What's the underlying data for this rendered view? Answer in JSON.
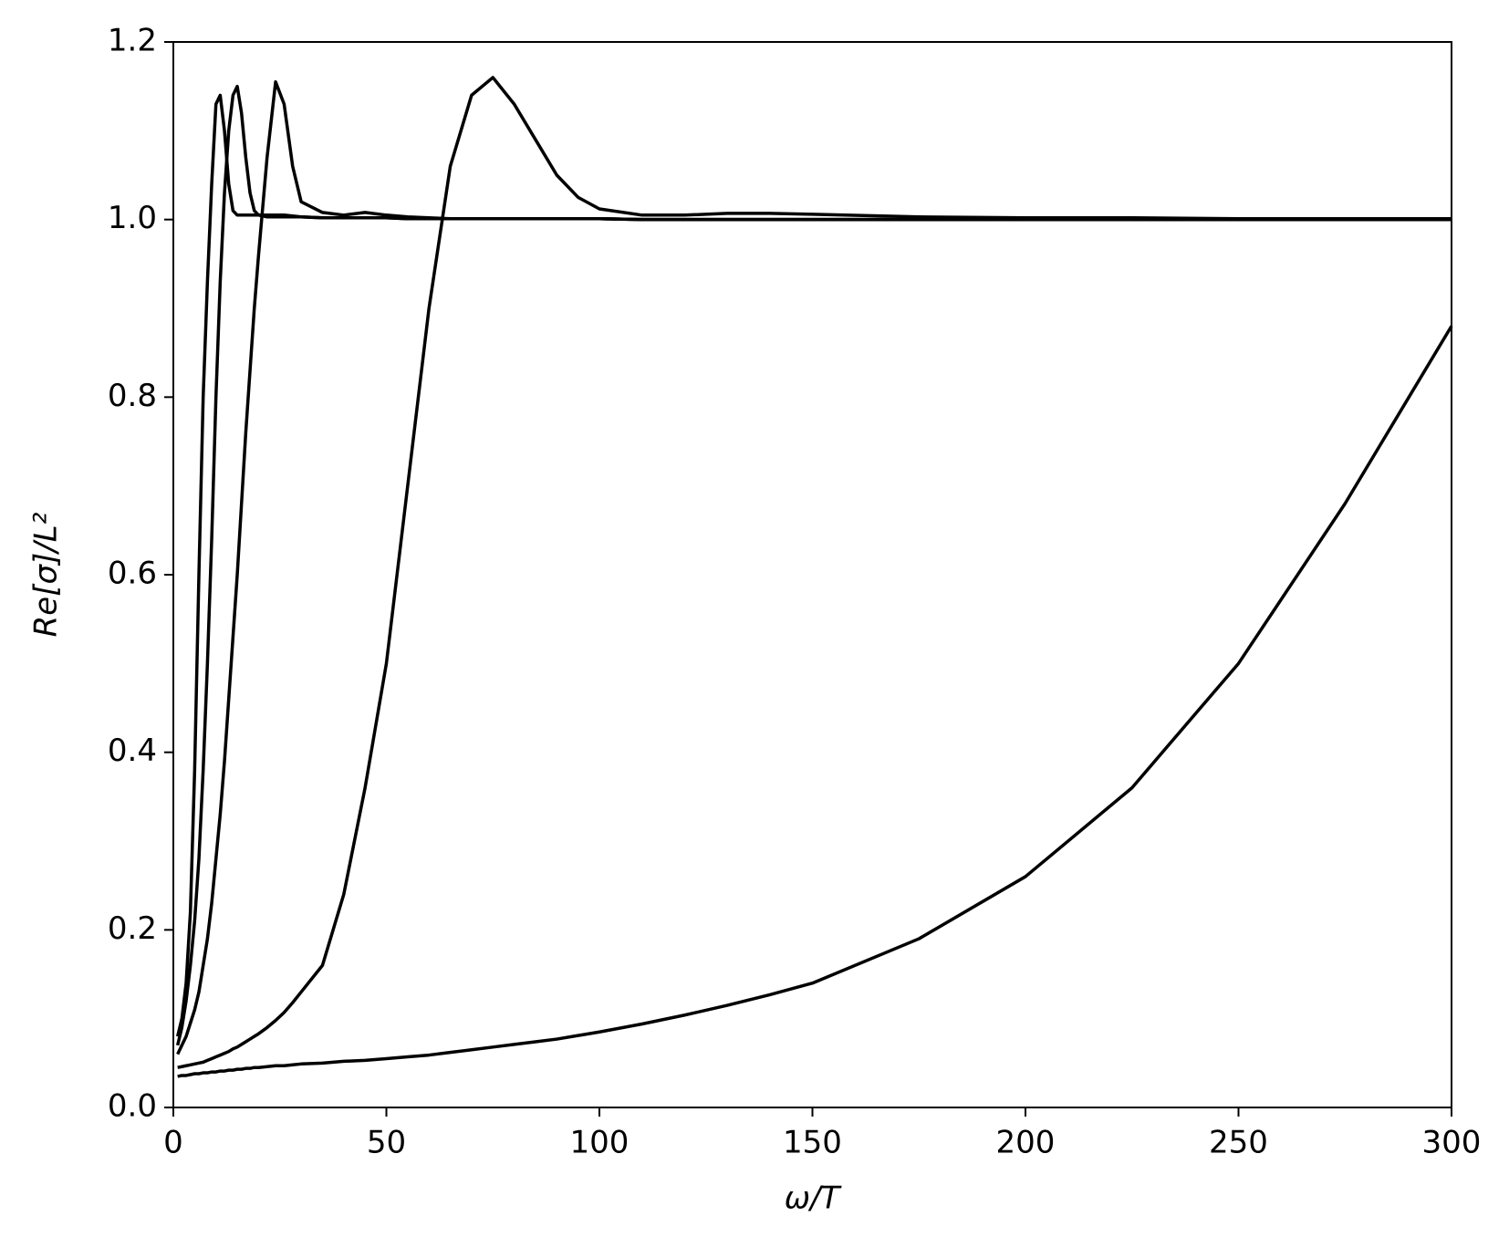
{
  "chart_data": {
    "type": "line",
    "x_label": "ω/T",
    "y_label": "Re[σ]/L²",
    "xlim": [
      0,
      300
    ],
    "ylim": [
      0,
      1.2
    ],
    "xticks": [
      0,
      50,
      100,
      150,
      200,
      250,
      300
    ],
    "yticks": [
      {
        "value": 0,
        "label": "0.0"
      },
      0.2,
      0.4,
      0.6,
      0.8,
      {
        "value": 1,
        "label": "1.0"
      },
      1.2
    ],
    "grid": false,
    "x": [
      1,
      2,
      3,
      4,
      5,
      6,
      7,
      8,
      9,
      10,
      11,
      12,
      13,
      14,
      15,
      16,
      17,
      18,
      19,
      20,
      22,
      24,
      26,
      28,
      30,
      35,
      40,
      45,
      50,
      55,
      60,
      65,
      70,
      75,
      80,
      85,
      90,
      95,
      100,
      110,
      120,
      130,
      140,
      150,
      175,
      200,
      225,
      250,
      275,
      300
    ],
    "series": [
      {
        "color": "#000000",
        "values": [
          0.08,
          0.1,
          0.14,
          0.22,
          0.38,
          0.6,
          0.8,
          0.93,
          1.04,
          1.13,
          1.14,
          1.1,
          1.04,
          1.01,
          1.005,
          1.005,
          1.005,
          1.005,
          1.005,
          1.005,
          1.003,
          1.003,
          1.003,
          1.003,
          1.003,
          1.002,
          1.002,
          1.002,
          1.002,
          1.001,
          1.001,
          1.001,
          1.001,
          1.001,
          1.001,
          1.001,
          1.001,
          1.001,
          1.001,
          1.0,
          1.0,
          1.0,
          1.0,
          1.0,
          1.0,
          1.0,
          1.0,
          1.0,
          1.0,
          1.0
        ]
      },
      {
        "color": "#000000",
        "values": [
          0.07,
          0.09,
          0.12,
          0.16,
          0.21,
          0.28,
          0.38,
          0.5,
          0.64,
          0.8,
          0.93,
          1.03,
          1.1,
          1.14,
          1.15,
          1.12,
          1.07,
          1.03,
          1.01,
          1.005,
          1.005,
          1.005,
          1.005,
          1.004,
          1.003,
          1.002,
          1.002,
          1.002,
          1.002,
          1.001,
          1.001,
          1.001,
          1.001,
          1.001,
          1.001,
          1.001,
          1.001,
          1.001,
          1.001,
          1.0,
          1.0,
          1.0,
          1.0,
          1.0,
          1.0,
          1.0,
          1.0,
          1.0,
          1.0,
          1.0
        ]
      },
      {
        "color": "#000000",
        "values": [
          0.06,
          0.07,
          0.08,
          0.095,
          0.11,
          0.13,
          0.16,
          0.19,
          0.23,
          0.28,
          0.33,
          0.39,
          0.46,
          0.53,
          0.6,
          0.68,
          0.76,
          0.83,
          0.9,
          0.96,
          1.07,
          1.155,
          1.13,
          1.06,
          1.02,
          1.008,
          1.005,
          1.008,
          1.005,
          1.003,
          1.002,
          1.001,
          1.001,
          1.001,
          1.001,
          1.001,
          1.001,
          1.001,
          1.001,
          1.0,
          1.0,
          1.0,
          1.0,
          1.0,
          1.0,
          1.0,
          1.0,
          1.0,
          1.0,
          1.0
        ]
      },
      {
        "color": "#000000",
        "values": [
          0.045,
          0.046,
          0.047,
          0.048,
          0.049,
          0.05,
          0.051,
          0.053,
          0.055,
          0.057,
          0.059,
          0.061,
          0.063,
          0.066,
          0.068,
          0.071,
          0.074,
          0.077,
          0.08,
          0.083,
          0.09,
          0.098,
          0.107,
          0.118,
          0.13,
          0.16,
          0.24,
          0.36,
          0.5,
          0.7,
          0.9,
          1.06,
          1.14,
          1.16,
          1.13,
          1.09,
          1.05,
          1.025,
          1.012,
          1.005,
          1.005,
          1.007,
          1.007,
          1.006,
          1.003,
          1.002,
          1.002,
          1.001,
          1.001,
          1.001
        ]
      },
      {
        "color": "#000000",
        "values": [
          0.035,
          0.036,
          0.036,
          0.037,
          0.038,
          0.038,
          0.039,
          0.039,
          0.04,
          0.04,
          0.041,
          0.041,
          0.042,
          0.042,
          0.043,
          0.043,
          0.044,
          0.044,
          0.045,
          0.045,
          0.046,
          0.047,
          0.047,
          0.048,
          0.049,
          0.05,
          0.052,
          0.053,
          0.055,
          0.057,
          0.059,
          0.062,
          0.065,
          0.068,
          0.071,
          0.074,
          0.077,
          0.081,
          0.085,
          0.094,
          0.104,
          0.115,
          0.127,
          0.14,
          0.19,
          0.26,
          0.36,
          0.5,
          0.68,
          0.88
        ]
      }
    ]
  }
}
